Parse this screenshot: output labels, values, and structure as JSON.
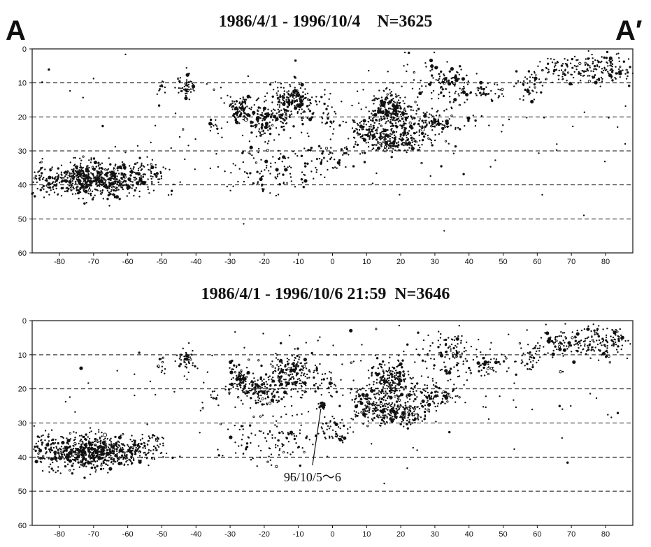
{
  "profile": {
    "left_label": "A",
    "right_label": "A′"
  },
  "colors": {
    "ink": "#111111",
    "background": "#ffffff"
  },
  "chart_data": [
    {
      "type": "scatter",
      "title": "1986/4/1 - 1996/10/4    N=3625",
      "xlabel": "",
      "ylabel": "",
      "xlim": [
        -88,
        88
      ],
      "ylim": [
        0,
        60
      ],
      "y_inverted": true,
      "x_ticks": [
        -80,
        -70,
        -60,
        -50,
        -40,
        -30,
        -20,
        -10,
        0,
        10,
        20,
        30,
        40,
        50,
        60,
        70,
        80
      ],
      "y_ticks": [
        0,
        10,
        20,
        30,
        40,
        50,
        60
      ],
      "dashed_reference_lines": [
        10,
        20,
        30,
        40,
        50
      ],
      "grid": false,
      "legend": "none",
      "clusters": [
        {
          "x": -70,
          "y": 38.5,
          "sx": 7.0,
          "sy": 2.4,
          "n": 620
        },
        {
          "x": -55,
          "y": 37.0,
          "sx": 3.5,
          "sy": 2.0,
          "n": 80
        },
        {
          "x": -84,
          "y": 38.0,
          "sx": 2.5,
          "sy": 3.0,
          "n": 50
        },
        {
          "x": -43,
          "y": 11.5,
          "sx": 1.3,
          "sy": 1.5,
          "n": 45
        },
        {
          "x": -50,
          "y": 12.5,
          "sx": 0.8,
          "sy": 1.5,
          "n": 12
        },
        {
          "x": -35,
          "y": 22.5,
          "sx": 0.8,
          "sy": 1.0,
          "n": 10
        },
        {
          "x": -27,
          "y": 17.5,
          "sx": 2.0,
          "sy": 2.0,
          "n": 90
        },
        {
          "x": -20,
          "y": 20.5,
          "sx": 3.0,
          "sy": 2.2,
          "n": 140
        },
        {
          "x": -12,
          "y": 15.0,
          "sx": 2.8,
          "sy": 2.5,
          "n": 160
        },
        {
          "x": -5,
          "y": 18.5,
          "sx": 5.0,
          "sy": 3.0,
          "n": 60
        },
        {
          "x": -18,
          "y": 35.0,
          "sx": 8.0,
          "sy": 3.5,
          "n": 110
        },
        {
          "x": 0,
          "y": 32.5,
          "sx": 3.0,
          "sy": 2.0,
          "n": 40
        },
        {
          "x": 17,
          "y": 18.0,
          "sx": 3.0,
          "sy": 3.0,
          "n": 220
        },
        {
          "x": 10,
          "y": 24.0,
          "sx": 3.0,
          "sy": 2.5,
          "n": 90
        },
        {
          "x": 18,
          "y": 27.0,
          "sx": 5.0,
          "sy": 2.0,
          "n": 220
        },
        {
          "x": 29,
          "y": 22.0,
          "sx": 4.0,
          "sy": 1.8,
          "n": 110
        },
        {
          "x": 34,
          "y": 10.0,
          "sx": 4.0,
          "sy": 3.0,
          "n": 110
        },
        {
          "x": 45,
          "y": 12.5,
          "sx": 3.0,
          "sy": 1.3,
          "n": 45
        },
        {
          "x": 58,
          "y": 11.0,
          "sx": 2.0,
          "sy": 2.0,
          "n": 35
        },
        {
          "x": 68,
          "y": 6.5,
          "sx": 5.0,
          "sy": 2.0,
          "n": 100
        },
        {
          "x": 80,
          "y": 6.0,
          "sx": 5.0,
          "sy": 2.5,
          "n": 120
        },
        {
          "x": 5,
          "y": 20.0,
          "sx": 45.0,
          "sy": 11.0,
          "n": 170
        }
      ]
    },
    {
      "type": "scatter",
      "title": "1986/4/1 - 1996/10/6 21:59  N=3646",
      "xlabel": "",
      "ylabel": "",
      "xlim": [
        -88,
        88
      ],
      "ylim": [
        0,
        60
      ],
      "y_inverted": true,
      "x_ticks": [
        -80,
        -70,
        -60,
        -50,
        -40,
        -30,
        -20,
        -10,
        0,
        10,
        20,
        30,
        40,
        50,
        60,
        70,
        80
      ],
      "y_ticks": [
        0,
        10,
        20,
        30,
        40,
        50,
        60
      ],
      "dashed_reference_lines": [
        10,
        20,
        30,
        40,
        50
      ],
      "grid": false,
      "legend": "none",
      "annotation": {
        "text": "96/10/5～6",
        "x": -3,
        "y": 25
      },
      "clusters": [
        {
          "x": -70,
          "y": 38.5,
          "sx": 7.0,
          "sy": 2.4,
          "n": 620
        },
        {
          "x": -55,
          "y": 37.0,
          "sx": 3.5,
          "sy": 2.0,
          "n": 80
        },
        {
          "x": -84,
          "y": 38.0,
          "sx": 2.5,
          "sy": 3.0,
          "n": 50
        },
        {
          "x": -43,
          "y": 11.5,
          "sx": 1.3,
          "sy": 1.5,
          "n": 45
        },
        {
          "x": -50,
          "y": 12.5,
          "sx": 0.8,
          "sy": 1.5,
          "n": 12
        },
        {
          "x": -35,
          "y": 22.5,
          "sx": 0.8,
          "sy": 1.0,
          "n": 10
        },
        {
          "x": -27,
          "y": 17.5,
          "sx": 2.0,
          "sy": 2.0,
          "n": 90
        },
        {
          "x": -20,
          "y": 20.5,
          "sx": 3.0,
          "sy": 2.2,
          "n": 140
        },
        {
          "x": -12,
          "y": 15.0,
          "sx": 2.8,
          "sy": 2.5,
          "n": 160
        },
        {
          "x": -5,
          "y": 18.5,
          "sx": 5.0,
          "sy": 3.0,
          "n": 60
        },
        {
          "x": -18,
          "y": 35.0,
          "sx": 8.0,
          "sy": 3.5,
          "n": 110
        },
        {
          "x": 0,
          "y": 32.5,
          "sx": 3.0,
          "sy": 2.0,
          "n": 40
        },
        {
          "x": 17,
          "y": 18.0,
          "sx": 3.0,
          "sy": 3.0,
          "n": 220
        },
        {
          "x": 10,
          "y": 24.0,
          "sx": 3.0,
          "sy": 2.5,
          "n": 90
        },
        {
          "x": 18,
          "y": 27.0,
          "sx": 5.0,
          "sy": 2.0,
          "n": 220
        },
        {
          "x": 29,
          "y": 22.0,
          "sx": 4.0,
          "sy": 1.8,
          "n": 110
        },
        {
          "x": 34,
          "y": 10.0,
          "sx": 4.0,
          "sy": 3.0,
          "n": 110
        },
        {
          "x": 45,
          "y": 12.5,
          "sx": 3.0,
          "sy": 1.3,
          "n": 45
        },
        {
          "x": 58,
          "y": 11.0,
          "sx": 2.0,
          "sy": 2.0,
          "n": 35
        },
        {
          "x": 68,
          "y": 6.5,
          "sx": 5.0,
          "sy": 2.0,
          "n": 100
        },
        {
          "x": 80,
          "y": 6.0,
          "sx": 5.0,
          "sy": 2.5,
          "n": 120
        },
        {
          "x": 5,
          "y": 20.0,
          "sx": 45.0,
          "sy": 11.0,
          "n": 170
        },
        {
          "x": -3,
          "y": 24.8,
          "sx": 0.4,
          "sy": 0.4,
          "n": 21
        }
      ]
    }
  ]
}
